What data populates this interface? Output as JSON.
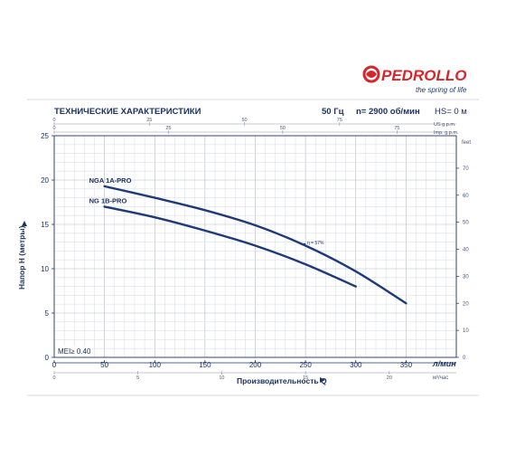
{
  "brand": {
    "name": "PEDROLLO",
    "tagline": "the spring of life",
    "red": "#d7262b",
    "blue": "#1e3a7a"
  },
  "header": {
    "title": "ТЕХНИЧЕСКИЕ ХАРАКТЕРИСТИКИ",
    "frequency": "50 Гц",
    "speed": "n= 2900 об/мин",
    "hs": "HS= 0 м"
  },
  "chart_data": {
    "type": "line",
    "xlabel": "Производительность Q",
    "x_unit": "л/мин",
    "ylabel": "Напор H (метры)",
    "xlim": [
      0,
      400
    ],
    "ylim": [
      0,
      25
    ],
    "x_ticks": [
      0,
      50,
      100,
      150,
      200,
      250,
      300,
      350
    ],
    "y_ticks": [
      0,
      5,
      10,
      15,
      20,
      25
    ],
    "grid": true,
    "secondary_axes": {
      "us_gpm": {
        "label": "US g.p.m.",
        "ticks": [
          0,
          25,
          50,
          75
        ]
      },
      "imp_gpm": {
        "label": "Imp. g.p.m.",
        "ticks": [
          0,
          25,
          50,
          75
        ]
      },
      "m3h": {
        "label": "м³/час",
        "ticks": [
          0,
          5,
          10,
          15,
          20
        ]
      },
      "feet": {
        "label": "feet",
        "ticks": [
          0,
          10,
          20,
          30,
          40,
          50,
          60,
          70
        ]
      }
    },
    "efficiency_label": "η = 57%",
    "mei_label": "MEI≥ 0.40",
    "series": [
      {
        "name": "NGA 1A-PRO",
        "x": [
          50,
          100,
          150,
          200,
          250,
          300,
          350
        ],
        "y": [
          19.3,
          18.0,
          16.6,
          14.9,
          12.6,
          9.7,
          6.1
        ],
        "color": "#1e3a7a"
      },
      {
        "name": "NG 1B-PRO",
        "x": [
          50,
          100,
          150,
          200,
          250,
          300
        ],
        "y": [
          17.0,
          15.8,
          14.3,
          12.6,
          10.5,
          8.0
        ],
        "color": "#1e3a7a"
      }
    ]
  }
}
